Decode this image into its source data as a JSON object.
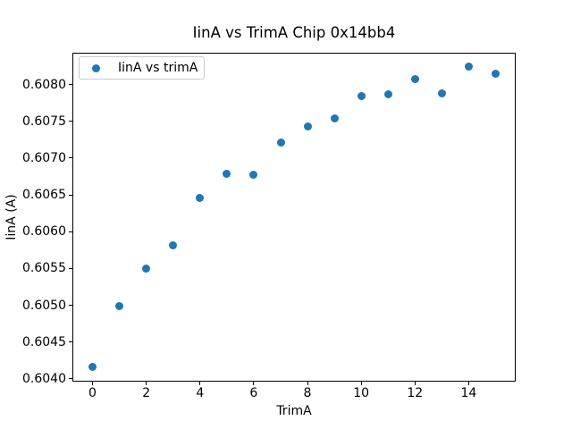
{
  "window": {
    "background": "#ffffff"
  },
  "chart_data": {
    "type": "scatter",
    "title": "IinA vs TrimA Chip 0x14bb4",
    "xlabel": "TrimA",
    "ylabel": "IinA (A)",
    "grid": false,
    "xlim": [
      -0.75,
      15.75
    ],
    "ylim": [
      0.603962,
      0.608433
    ],
    "x_ticks": [
      0,
      2,
      4,
      6,
      8,
      10,
      12,
      14
    ],
    "x_tick_labels": [
      "0",
      "2",
      "4",
      "6",
      "8",
      "10",
      "12",
      "14"
    ],
    "y_ticks": [
      0.604,
      0.6045,
      0.605,
      0.6055,
      0.606,
      0.6065,
      0.607,
      0.6075,
      0.608
    ],
    "y_tick_labels": [
      "0.6040",
      "0.6045",
      "0.6050",
      "0.6055",
      "0.6060",
      "0.6065",
      "0.6070",
      "0.6075",
      "0.6080"
    ],
    "series": [
      {
        "name": "IinA vs trimA",
        "marker": "circle",
        "color": "#1f77b4",
        "x": [
          0,
          1,
          2,
          3,
          4,
          5,
          6,
          7,
          8,
          9,
          10,
          11,
          12,
          13,
          14,
          15
        ],
        "y": [
          0.60416,
          0.60499,
          0.6055,
          0.60582,
          0.60646,
          0.60679,
          0.60677,
          0.60721,
          0.60743,
          0.60754,
          0.60784,
          0.60787,
          0.60807,
          0.60788,
          0.60824,
          0.60815
        ]
      }
    ],
    "legend": {
      "position": "upper left",
      "entries": [
        {
          "label": "IinA vs trimA",
          "color": "#1f77b4"
        }
      ]
    }
  }
}
